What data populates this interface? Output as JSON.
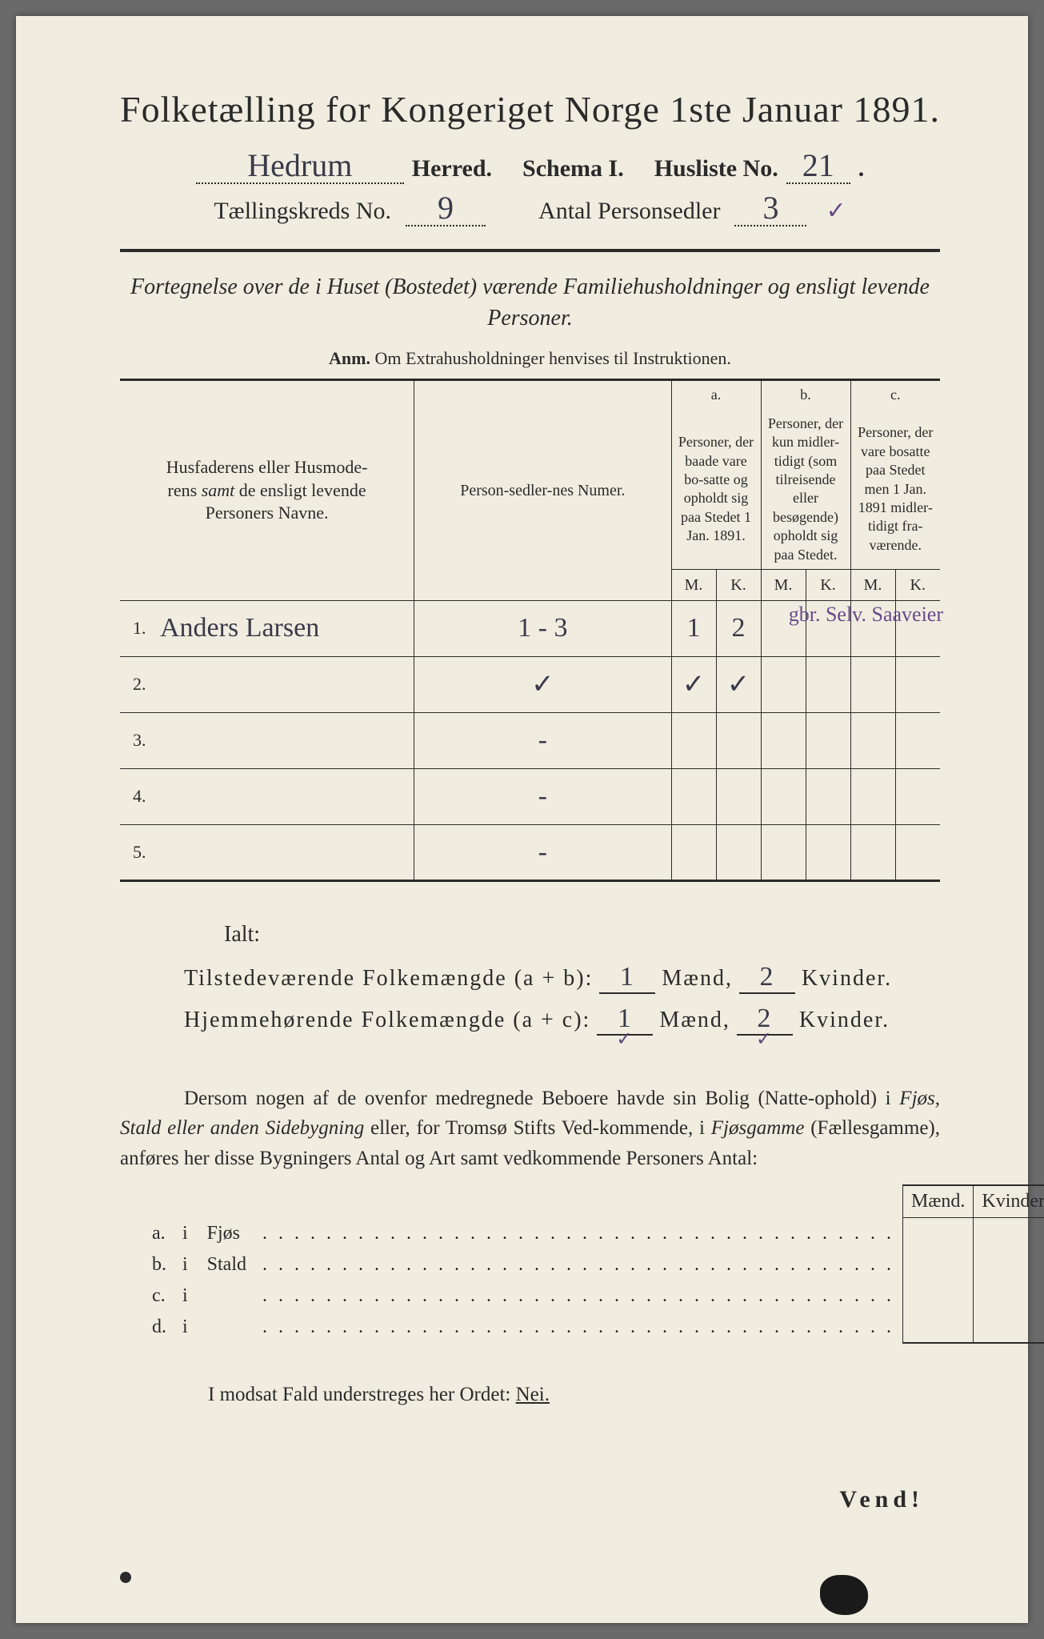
{
  "title": "Folketælling for Kongeriget Norge 1ste Januar 1891.",
  "header": {
    "herred_value": "Hedrum",
    "herred_label": "Herred.",
    "schema_label": "Schema I.",
    "husliste_label": "Husliste No.",
    "husliste_value": "21",
    "kreds_label": "Tællingskreds No.",
    "kreds_value": "9",
    "antal_label": "Antal Personsedler",
    "antal_value": "3",
    "antal_check": "✓"
  },
  "subtitle": "Fortegnelse over de i Huset (Bostedet) værende Familiehusholdninger og ensligt levende Personer.",
  "anm_label": "Anm.",
  "anm_text": "Om Extrahusholdninger henvises til Instruktionen.",
  "table": {
    "col1": "Husfaderens eller Husmoderens samt de ensligt levende Personers Navne.",
    "col2": "Person-sedler-nes Numer.",
    "col_a_letter": "a.",
    "col_a": "Personer, der baade vare bo-satte og opholdt sig paa Stedet 1 Jan. 1891.",
    "col_b_letter": "b.",
    "col_b": "Personer, der kun midler-tidigt (som tilreisende eller besøgende) opholdt sig paa Stedet.",
    "col_c_letter": "c.",
    "col_c": "Personer, der vare bosatte paa Stedet men 1 Jan. 1891 midler-tidigt fra-værende.",
    "m": "M.",
    "k": "K.",
    "rows": [
      {
        "num": "1.",
        "name": "Anders Larsen",
        "pn": "1 - 3",
        "am": "1",
        "ak": "2",
        "bm": "",
        "bk": "",
        "cm": "",
        "ck": "",
        "note": "gbr. Selv. Saaveier"
      },
      {
        "num": "2.",
        "name": "",
        "pn": "✓",
        "am": "✓",
        "ak": "✓",
        "bm": "",
        "bk": "",
        "cm": "",
        "ck": "",
        "note": ""
      },
      {
        "num": "3.",
        "name": "",
        "pn": "-",
        "am": "",
        "ak": "",
        "bm": "",
        "bk": "",
        "cm": "",
        "ck": "",
        "note": ""
      },
      {
        "num": "4.",
        "name": "",
        "pn": "-",
        "am": "",
        "ak": "",
        "bm": "",
        "bk": "",
        "cm": "",
        "ck": "",
        "note": ""
      },
      {
        "num": "5.",
        "name": "",
        "pn": "-",
        "am": "",
        "ak": "",
        "bm": "",
        "bk": "",
        "cm": "",
        "ck": "",
        "note": ""
      }
    ]
  },
  "totals": {
    "ialt": "Ialt:",
    "row1_label": "Tilstedeværende Folkemængde (a + b):",
    "row2_label": "Hjemmehørende Folkemængde (a + c):",
    "maend": "Mænd,",
    "kvinder": "Kvinder.",
    "r1m": "1",
    "r1k": "2",
    "r2m": "1",
    "r2k": "2",
    "check": "✓"
  },
  "para": "Dersom nogen af de ovenfor medregnede Beboere havde sin Bolig (Natte-ophold) i Fjøs, Stald eller anden Sidebygning eller, for Tromsø Stifts Ved-kommende, i Fjøsgamme (Fællesgamme), anføres her disse Bygningers Antal og Art samt vedkommende Personers Antal:",
  "sub": {
    "maend": "Mænd.",
    "kvinder": "Kvinder.",
    "rows": [
      {
        "l": "a.",
        "i": "i",
        "t": "Fjøs"
      },
      {
        "l": "b.",
        "i": "i",
        "t": "Stald"
      },
      {
        "l": "c.",
        "i": "i",
        "t": ""
      },
      {
        "l": "d.",
        "i": "i",
        "t": ""
      }
    ]
  },
  "footer": "I modsat Fald understreges her Ordet:",
  "nei": "Nei.",
  "vend": "Vend!",
  "colors": {
    "paper": "#f0ede0",
    "ink": "#2a2a2a",
    "handwriting": "#3a3a4a",
    "purple": "#6a4a8a"
  }
}
